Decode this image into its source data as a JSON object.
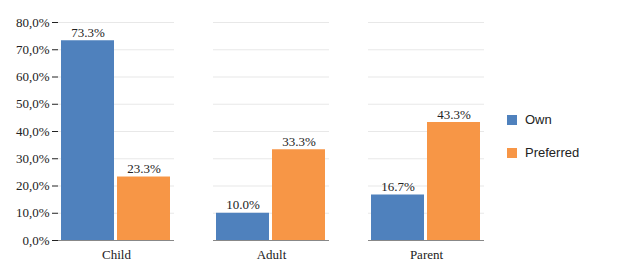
{
  "chart_data": {
    "type": "bar",
    "categories": [
      "Child",
      "Adult",
      "Parent"
    ],
    "series": [
      {
        "name": "Own",
        "color": "#4F81BD",
        "values": [
          73.3,
          10.0,
          16.7
        ],
        "value_labels": [
          "73.3%",
          "10.0%",
          "16.7%"
        ]
      },
      {
        "name": "Preferred",
        "color": "#F79646",
        "values": [
          23.3,
          33.3,
          43.3
        ],
        "value_labels": [
          "23.3%",
          "33.3%",
          "43.3%"
        ]
      }
    ],
    "ylim": [
      0,
      80
    ],
    "yticks": [
      {
        "value": 0,
        "label": "0,0%"
      },
      {
        "value": 10,
        "label": "10,0%"
      },
      {
        "value": 20,
        "label": "20,0%"
      },
      {
        "value": 30,
        "label": "30,0%"
      },
      {
        "value": 40,
        "label": "40,0%"
      },
      {
        "value": 50,
        "label": "50,0%"
      },
      {
        "value": 60,
        "label": "60,0%"
      },
      {
        "value": 70,
        "label": "70,0%"
      },
      {
        "value": 80,
        "label": "80,0%"
      }
    ],
    "grid": true,
    "data_labels": true,
    "legend": "right"
  }
}
